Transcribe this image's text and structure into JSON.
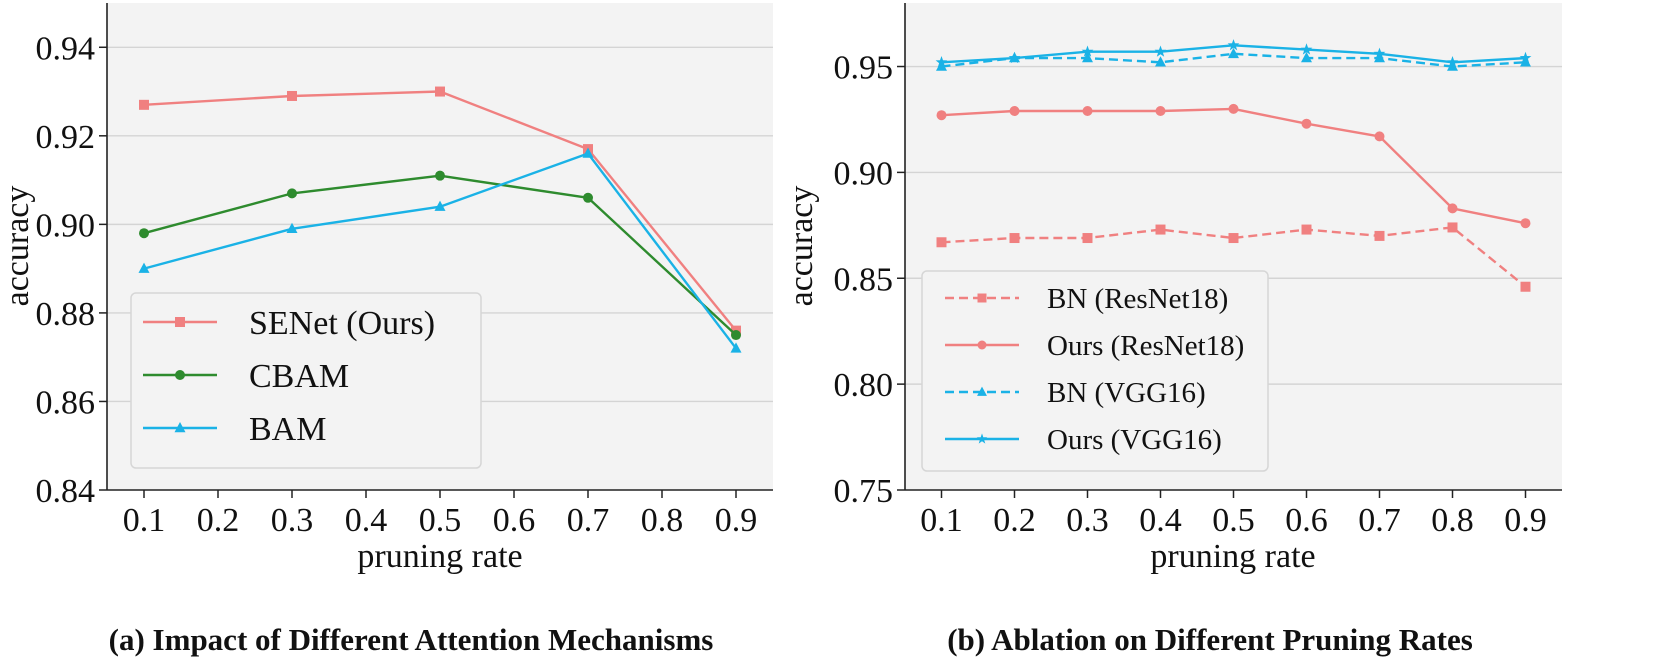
{
  "chart_data": [
    {
      "type": "line",
      "caption": "(a) Impact of Different Attention Mechanisms",
      "xlabel": "pruning rate",
      "ylabel": "accuracy",
      "xlim": [
        0.05,
        0.95
      ],
      "ylim": [
        0.84,
        0.95
      ],
      "xticks": [
        0.1,
        0.2,
        0.3,
        0.4,
        0.5,
        0.6,
        0.7,
        0.8,
        0.9
      ],
      "xtick_labels": [
        "0.1",
        "0.2",
        "0.3",
        "0.4",
        "0.5",
        "0.6",
        "0.7",
        "0.8",
        "0.9"
      ],
      "yticks": [
        0.84,
        0.86,
        0.88,
        0.9,
        0.92,
        0.94
      ],
      "ytick_labels": [
        "0.84",
        "0.86",
        "0.88",
        "0.90",
        "0.92",
        "0.94"
      ],
      "grid": "horizontal",
      "legend_position": "lower-left",
      "series": [
        {
          "name": "SENet (Ours)",
          "color": "#f08080",
          "marker": "square",
          "dash": "solid",
          "x": [
            0.1,
            0.3,
            0.5,
            0.7,
            0.9
          ],
          "values": [
            0.927,
            0.929,
            0.93,
            0.917,
            0.876
          ]
        },
        {
          "name": "CBAM",
          "color": "#2e8b2e",
          "marker": "circle",
          "dash": "solid",
          "x": [
            0.1,
            0.3,
            0.5,
            0.7,
            0.9
          ],
          "values": [
            0.898,
            0.907,
            0.911,
            0.906,
            0.875
          ]
        },
        {
          "name": "BAM",
          "color": "#1ab2e6",
          "marker": "triangle",
          "dash": "solid",
          "x": [
            0.1,
            0.3,
            0.5,
            0.7,
            0.9
          ],
          "values": [
            0.89,
            0.899,
            0.904,
            0.916,
            0.872
          ]
        }
      ]
    },
    {
      "type": "line",
      "caption": "(b) Ablation on Different Pruning Rates",
      "xlabel": "pruning rate",
      "ylabel": "accuracy",
      "xlim": [
        0.05,
        0.95
      ],
      "ylim": [
        0.75,
        0.98
      ],
      "xticks": [
        0.1,
        0.2,
        0.3,
        0.4,
        0.5,
        0.6,
        0.7,
        0.8,
        0.9
      ],
      "xtick_labels": [
        "0.1",
        "0.2",
        "0.3",
        "0.4",
        "0.5",
        "0.6",
        "0.7",
        "0.8",
        "0.9"
      ],
      "yticks": [
        0.75,
        0.8,
        0.85,
        0.9,
        0.95
      ],
      "ytick_labels": [
        "0.75",
        "0.80",
        "0.85",
        "0.90",
        "0.95"
      ],
      "grid": "horizontal",
      "legend_position": "lower-left",
      "series": [
        {
          "name": "BN (ResNet18)",
          "color": "#f08080",
          "marker": "square",
          "dash": "dashed",
          "x": [
            0.1,
            0.2,
            0.3,
            0.4,
            0.5,
            0.6,
            0.7,
            0.8,
            0.9
          ],
          "values": [
            0.867,
            0.869,
            0.869,
            0.873,
            0.869,
            0.873,
            0.87,
            0.874,
            0.846
          ]
        },
        {
          "name": "Ours (ResNet18)",
          "color": "#f08080",
          "marker": "circle",
          "dash": "solid",
          "x": [
            0.1,
            0.2,
            0.3,
            0.4,
            0.5,
            0.6,
            0.7,
            0.8,
            0.9
          ],
          "values": [
            0.927,
            0.929,
            0.929,
            0.929,
            0.93,
            0.923,
            0.917,
            0.883,
            0.876
          ]
        },
        {
          "name": "BN (VGG16)",
          "color": "#1ab2e6",
          "marker": "triangle",
          "dash": "dashed",
          "x": [
            0.1,
            0.2,
            0.3,
            0.4,
            0.5,
            0.6,
            0.7,
            0.8,
            0.9
          ],
          "values": [
            0.95,
            0.954,
            0.954,
            0.952,
            0.956,
            0.954,
            0.954,
            0.95,
            0.952
          ]
        },
        {
          "name": "Ours (VGG16)",
          "color": "#1ab2e6",
          "marker": "star",
          "dash": "solid",
          "x": [
            0.1,
            0.2,
            0.3,
            0.4,
            0.5,
            0.6,
            0.7,
            0.8,
            0.9
          ],
          "values": [
            0.952,
            0.954,
            0.957,
            0.957,
            0.96,
            0.958,
            0.956,
            0.952,
            0.954
          ]
        }
      ]
    }
  ]
}
